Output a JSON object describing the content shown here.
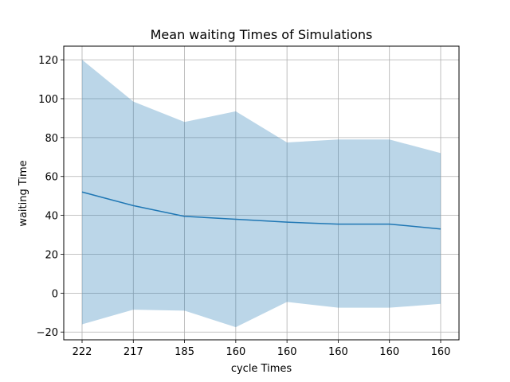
{
  "chart_data": {
    "type": "line",
    "title": "Mean waiting Times of Simulations",
    "xlabel": "cycle Times",
    "ylabel": "waiting Time",
    "categories": [
      "222",
      "217",
      "185",
      "160",
      "160",
      "160",
      "160",
      "160"
    ],
    "series": [
      {
        "values": [
          52,
          45,
          39.5,
          38,
          36.5,
          35.5,
          35.5,
          33
        ],
        "lower": [
          -16,
          -8.5,
          -9,
          -17.5,
          -4.5,
          -7.5,
          -7.5,
          -5.5
        ],
        "upper": [
          120,
          98.5,
          88,
          93.5,
          77.5,
          79,
          79,
          72
        ],
        "line_color": "#1f77b4",
        "band_color": "#1f77b4"
      }
    ],
    "ylim": [
      -24,
      127
    ],
    "yticks": [
      -20,
      0,
      20,
      40,
      60,
      80,
      100,
      120
    ],
    "ytick_labels": [
      "−20",
      "0",
      "20",
      "40",
      "60",
      "80",
      "100",
      "120"
    ],
    "grid": true
  }
}
